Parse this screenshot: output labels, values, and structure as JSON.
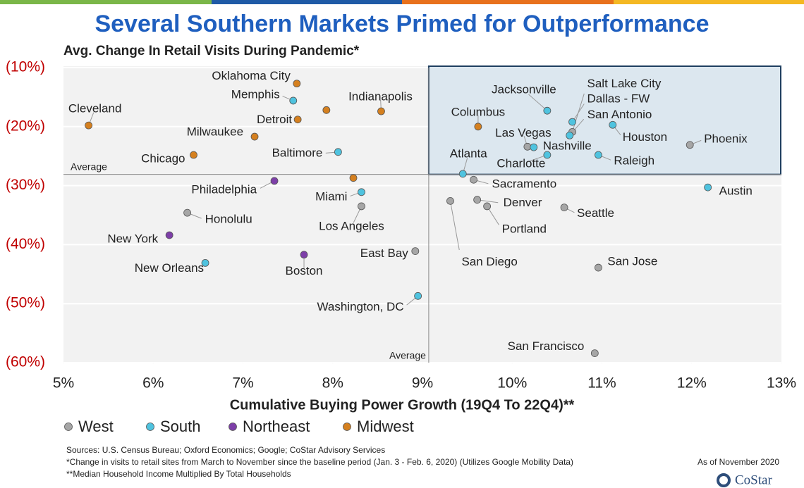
{
  "chart_data": {
    "type": "scatter",
    "title": "Several Southern Markets Primed for Outperformance",
    "subtitle": "Avg. Change In Retail Visits During Pandemic*",
    "x_label": "Cumulative Buying Power Growth (19Q4 To 22Q4)**",
    "xlim": [
      5,
      13
    ],
    "xticks": [
      {
        "value": 5,
        "label": "5%"
      },
      {
        "value": 6,
        "label": "6%"
      },
      {
        "value": 7,
        "label": "7%"
      },
      {
        "value": 8,
        "label": "8%"
      },
      {
        "value": 9,
        "label": "9%"
      },
      {
        "value": 10,
        "label": "10%"
      },
      {
        "value": 11,
        "label": "11%"
      },
      {
        "value": 12,
        "label": "12%"
      },
      {
        "value": 13,
        "label": "13%"
      }
    ],
    "ylim": [
      -60,
      -10
    ],
    "yticks": [
      {
        "value": -10,
        "label": "(10%)"
      },
      {
        "value": -20,
        "label": "(20%)"
      },
      {
        "value": -30,
        "label": "(30%)"
      },
      {
        "value": -40,
        "label": "(40%)"
      },
      {
        "value": -50,
        "label": "(50%)"
      },
      {
        "value": -60,
        "label": "(60%)"
      }
    ],
    "grid": true,
    "average_x": {
      "value": 9.07,
      "label": "Average"
    },
    "average_y": {
      "value": -28.1,
      "label": "Average"
    },
    "series": [
      {
        "name": "West",
        "color": "#a6a6a6",
        "labels": [
          "Phoenix",
          "Sacramento",
          "Denver",
          "Portland",
          "Seattle",
          "San Diego",
          "San Jose",
          "San Francisco",
          "East Bay",
          "Los Angeles",
          "Honolulu",
          "Salt Lake City",
          "Las Vegas"
        ],
        "x": [
          11.98,
          9.57,
          9.61,
          9.72,
          10.58,
          9.31,
          10.96,
          10.92,
          8.92,
          8.32,
          6.38,
          10.67,
          10.17
        ],
        "values": [
          -23.1,
          -29.0,
          -32.4,
          -33.5,
          -33.7,
          -32.6,
          -43.9,
          -58.4,
          -41.1,
          -33.5,
          -34.6,
          -20.9,
          -23.4
        ]
      },
      {
        "name": "South",
        "color": "#4fc3df",
        "labels": [
          "Memphis",
          "Baltimore",
          "Miami",
          "New Orleans",
          "Washington, DC",
          "Jacksonville",
          "Dallas - FW",
          "San Antonio",
          "Houston",
          "Nashville",
          "Charlotte",
          "Raleigh",
          "Atlanta",
          "Austin"
        ],
        "x": [
          7.56,
          8.06,
          8.32,
          6.58,
          8.95,
          10.39,
          10.67,
          10.64,
          11.12,
          10.24,
          10.39,
          10.96,
          9.45,
          12.18
        ],
        "values": [
          -15.6,
          -24.3,
          -31.1,
          -43.1,
          -48.7,
          -17.3,
          -19.2,
          -21.5,
          -19.7,
          -23.5,
          -24.8,
          -24.8,
          -28.0,
          -30.3
        ]
      },
      {
        "name": "Northeast",
        "color": "#7d3fa8",
        "labels": [
          "Philadelphia",
          "New York",
          "Boston"
        ],
        "x": [
          7.35,
          6.18,
          7.68
        ],
        "values": [
          -29.2,
          -38.4,
          -41.7
        ]
      },
      {
        "name": "Midwest",
        "color": "#d5801f",
        "labels": [
          "Oklahoma City",
          null,
          "Indianapolis",
          "Cleveland",
          "Detroit",
          "Milwaukee",
          "Chicago",
          null,
          "Columbus"
        ],
        "x": [
          7.6,
          7.93,
          8.54,
          5.28,
          7.61,
          7.13,
          6.45,
          8.23,
          9.62
        ],
        "values": [
          -12.7,
          -17.2,
          -17.4,
          -19.8,
          -18.8,
          -21.7,
          -24.8,
          -28.7,
          -20.0
        ]
      }
    ]
  },
  "footer": {
    "notes": [
      "Sources: U.S. Census Bureau; Oxford Economics; Google; CoStar Advisory Services",
      "*Change in visits to retail sites from March to November since the baseline period (Jan. 3 - Feb. 6, 2020) (Utilizes Google Mobility Data)",
      "**Median Household Income Multiplied By Total Households"
    ],
    "as_of": "As of November 2020",
    "logo": "CoStar"
  }
}
